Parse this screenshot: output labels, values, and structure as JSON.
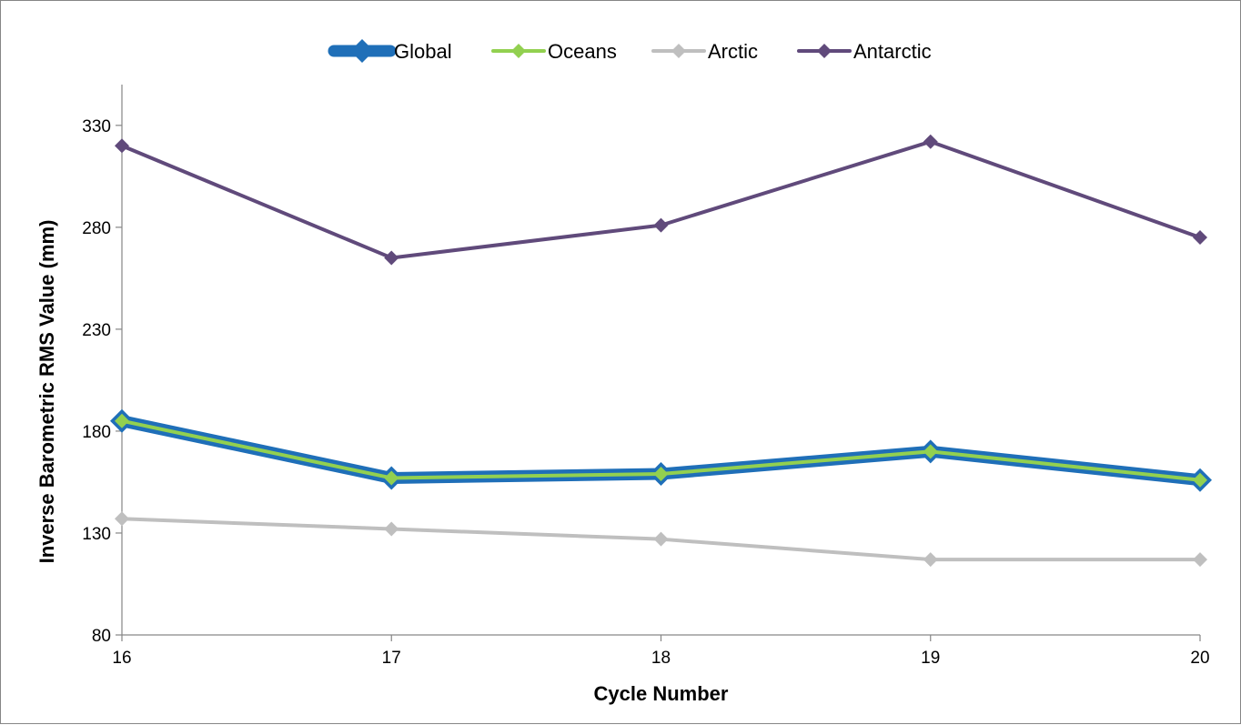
{
  "chart_data": {
    "type": "line",
    "title": "",
    "xlabel": "Cycle Number",
    "ylabel": "Inverse Barometric RMS Value (mm)",
    "x": [
      16,
      17,
      18,
      19,
      20
    ],
    "x_tick_labels": [
      "16",
      "17",
      "18",
      "19",
      "20"
    ],
    "ylim": [
      80,
      350
    ],
    "y_ticks": [
      80,
      130,
      180,
      230,
      280,
      330
    ],
    "y_tick_labels": [
      "80",
      "130",
      "180",
      "230",
      "280",
      "330"
    ],
    "grid": false,
    "legend_position": "top",
    "series": [
      {
        "name": "Global",
        "values": [
          185,
          157,
          159,
          170,
          156
        ],
        "color": "#1F6FB8",
        "marker": "diamond"
      },
      {
        "name": "Oceans",
        "values": [
          185,
          157,
          159,
          170,
          156
        ],
        "color": "#92D050",
        "marker": "diamond"
      },
      {
        "name": "Arctic",
        "values": [
          137,
          132,
          127,
          117,
          117
        ],
        "color": "#BFBFBF",
        "marker": "diamond"
      },
      {
        "name": "Antarctic",
        "values": [
          320,
          265,
          281,
          322,
          275
        ],
        "color": "#604A7B",
        "marker": "diamond"
      }
    ]
  }
}
